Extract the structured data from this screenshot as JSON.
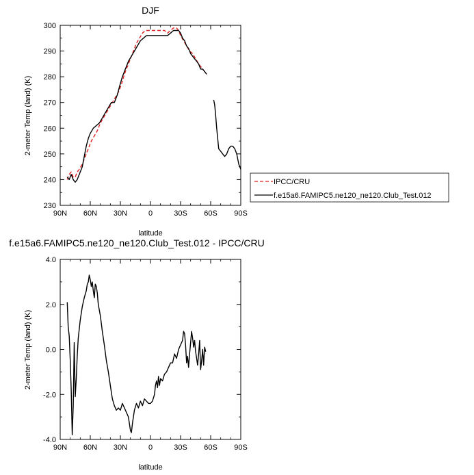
{
  "chart_data": [
    {
      "type": "line",
      "title": "DJF",
      "xlabel": "latitude",
      "ylabel": "2-meter Temp (land) (K)",
      "xlim": [
        90,
        -90
      ],
      "ylim": [
        230,
        300
      ],
      "x_ticks": [
        90,
        60,
        30,
        0,
        -30,
        -60,
        -90
      ],
      "x_tick_labels": [
        "90N",
        "60N",
        "30N",
        "0",
        "30S",
        "60S",
        "90S"
      ],
      "y_ticks": [
        230,
        240,
        250,
        260,
        270,
        280,
        290,
        300
      ],
      "y_tick_labels": [
        "230",
        "240",
        "250",
        "260",
        "270",
        "280",
        "290",
        "300"
      ],
      "legend": {
        "placement": "right",
        "entries": [
          "IPCC/CRU",
          "f.e15a6.FAMIPC5.ne120_ne120.Club_Test.012"
        ]
      },
      "series": [
        {
          "name": "IPCC/CRU",
          "color": "#e02020",
          "dash": true,
          "segments": [
            [
              [
                83,
                240
              ],
              [
                81,
                242
              ],
              [
                79,
                243
              ],
              [
                77,
                241
              ],
              [
                75,
                241
              ],
              [
                73,
                243
              ],
              [
                71,
                244
              ],
              [
                68,
                246
              ],
              [
                65,
                249
              ],
              [
                62,
                252
              ],
              [
                59,
                255
              ],
              [
                56,
                257
              ],
              [
                53,
                259
              ],
              [
                50,
                262
              ],
              [
                47,
                264
              ],
              [
                44,
                266
              ],
              [
                41,
                268
              ],
              [
                38,
                270
              ],
              [
                35,
                272
              ],
              [
                32,
                274
              ],
              [
                29,
                277
              ],
              [
                26,
                281
              ],
              [
                23,
                284
              ],
              [
                20,
                287
              ],
              [
                17,
                290
              ],
              [
                14,
                293
              ],
              [
                11,
                295
              ],
              [
                8,
                297
              ],
              [
                5,
                298
              ],
              [
                2,
                298
              ],
              [
                -2,
                298
              ],
              [
                -6,
                298
              ],
              [
                -10,
                298
              ],
              [
                -14,
                298
              ],
              [
                -17,
                297
              ],
              [
                -20,
                298
              ],
              [
                -23,
                299
              ],
              [
                -26,
                299
              ],
              [
                -28,
                298
              ],
              [
                -30,
                296
              ],
              [
                -33,
                294
              ],
              [
                -36,
                292
              ],
              [
                -39,
                290
              ],
              [
                -42,
                289
              ],
              [
                -45,
                287
              ],
              [
                -48,
                285
              ],
              [
                -50,
                284
              ],
              [
                -52,
                283
              ],
              [
                -54,
                282
              ],
              [
                -56,
                281
              ]
            ]
          ]
        },
        {
          "name": "f.e15a6.FAMIPC5.ne120_ne120.Club_Test.012",
          "color": "#000000",
          "dash": false,
          "segments": [
            [
              [
                83,
                241
              ],
              [
                81,
                240
              ],
              [
                79,
                242
              ],
              [
                77,
                240
              ],
              [
                75,
                239
              ],
              [
                73,
                240
              ],
              [
                71,
                242
              ],
              [
                68,
                245
              ],
              [
                66,
                249
              ],
              [
                64,
                253
              ],
              [
                62,
                256
              ],
              [
                60,
                258
              ],
              [
                57,
                260
              ],
              [
                54,
                261
              ],
              [
                51,
                262
              ],
              [
                48,
                264
              ],
              [
                45,
                266
              ],
              [
                42,
                268
              ],
              [
                39,
                270
              ],
              [
                36,
                270
              ],
              [
                33,
                273
              ],
              [
                31,
                276
              ],
              [
                28,
                280
              ],
              [
                25,
                283
              ],
              [
                22,
                286
              ],
              [
                19,
                288
              ],
              [
                16,
                290
              ],
              [
                13,
                292
              ],
              [
                10,
                294
              ],
              [
                7,
                295
              ],
              [
                4,
                296
              ],
              [
                1,
                296
              ],
              [
                -2,
                296
              ],
              [
                -5,
                296
              ],
              [
                -8,
                296
              ],
              [
                -11,
                296
              ],
              [
                -14,
                296
              ],
              [
                -17,
                296
              ],
              [
                -20,
                297
              ],
              [
                -23,
                298
              ],
              [
                -26,
                298
              ],
              [
                -28,
                298
              ],
              [
                -30,
                297
              ],
              [
                -32,
                295
              ],
              [
                -34,
                294
              ],
              [
                -36,
                292
              ],
              [
                -38,
                291
              ],
              [
                -40,
                289
              ],
              [
                -42,
                288
              ],
              [
                -44,
                287
              ],
              [
                -46,
                286
              ],
              [
                -48,
                285
              ],
              [
                -50,
                283
              ],
              [
                -52,
                283
              ],
              [
                -54,
                282
              ],
              [
                -56,
                281
              ]
            ],
            [
              [
                -63,
                271
              ],
              [
                -64,
                269
              ],
              [
                -65,
                265
              ],
              [
                -66,
                260
              ],
              [
                -67,
                256
              ],
              [
                -68,
                252
              ],
              [
                -70,
                251
              ],
              [
                -72,
                250
              ],
              [
                -74,
                249
              ],
              [
                -76,
                250
              ],
              [
                -78,
                252
              ],
              [
                -80,
                253
              ],
              [
                -82,
                253
              ],
              [
                -84,
                252
              ],
              [
                -86,
                250
              ],
              [
                -88,
                246
              ],
              [
                -90,
                244
              ]
            ]
          ]
        }
      ]
    },
    {
      "type": "line",
      "title": "f.e15a6.FAMIPC5.ne120_ne120.Club_Test.012 - IPCC/CRU",
      "xlabel": "latitude",
      "ylabel": "2-meter Temp (land) (K)",
      "xlim": [
        90,
        -90
      ],
      "ylim": [
        -4.0,
        4.0
      ],
      "x_ticks": [
        90,
        60,
        30,
        0,
        -30,
        -60,
        -90
      ],
      "x_tick_labels": [
        "90N",
        "60N",
        "30N",
        "0",
        "30S",
        "60S",
        "90S"
      ],
      "y_ticks": [
        -4.0,
        -2.0,
        0.0,
        2.0,
        4.0
      ],
      "y_tick_labels": [
        "-4.0",
        "-2.0",
        "0.0",
        "2.0",
        "4.0"
      ],
      "series": [
        {
          "name": "f.e15a6.FAMIPC5.ne120_ne120.Club_Test.012 - IPCC/CRU",
          "color": "#000000",
          "dash": false,
          "segments": [
            [
              [
                83,
                2.1
              ],
              [
                82,
                1.0
              ],
              [
                81,
                0.6
              ],
              [
                80,
                -0.5
              ],
              [
                79,
                -1.8
              ],
              [
                78,
                -3.8
              ],
              [
                77,
                -2.5
              ],
              [
                76,
                0.3
              ],
              [
                75,
                -2.1
              ],
              [
                74,
                -1.3
              ],
              [
                73,
                -0.3
              ],
              [
                72,
                0.5
              ],
              [
                70,
                1.3
              ],
              [
                68,
                1.9
              ],
              [
                66,
                2.3
              ],
              [
                64,
                2.6
              ],
              [
                63,
                2.9
              ],
              [
                62,
                3.0
              ],
              [
                61,
                3.3
              ],
              [
                60,
                3.1
              ],
              [
                59,
                2.8
              ],
              [
                58,
                3.0
              ],
              [
                57,
                2.6
              ],
              [
                56,
                2.3
              ],
              [
                55,
                2.9
              ],
              [
                54,
                2.8
              ],
              [
                53,
                2.5
              ],
              [
                52,
                2.0
              ],
              [
                50,
                1.5
              ],
              [
                48,
                0.8
              ],
              [
                46,
                0.2
              ],
              [
                44,
                -0.5
              ],
              [
                42,
                -1.0
              ],
              [
                40,
                -1.6
              ],
              [
                38,
                -2.2
              ],
              [
                36,
                -2.5
              ],
              [
                34,
                -2.7
              ],
              [
                32,
                -2.6
              ],
              [
                30,
                -2.7
              ],
              [
                28,
                -2.4
              ],
              [
                26,
                -2.6
              ],
              [
                24,
                -2.8
              ],
              [
                22,
                -3.0
              ],
              [
                20,
                -3.6
              ],
              [
                19,
                -3.7
              ],
              [
                18,
                -3.3
              ],
              [
                16,
                -2.7
              ],
              [
                14,
                -2.4
              ],
              [
                12,
                -2.6
              ],
              [
                10,
                -2.3
              ],
              [
                8,
                -2.5
              ],
              [
                6,
                -2.2
              ],
              [
                4,
                -2.3
              ],
              [
                2,
                -2.4
              ],
              [
                0,
                -2.4
              ],
              [
                -2,
                -2.3
              ],
              [
                -4,
                -2.0
              ],
              [
                -5,
                -1.6
              ],
              [
                -6,
                -1.4
              ],
              [
                -7,
                -1.7
              ],
              [
                -8,
                -1.2
              ],
              [
                -9,
                -1.6
              ],
              [
                -10,
                -1.3
              ],
              [
                -12,
                -1.4
              ],
              [
                -14,
                -1.1
              ],
              [
                -16,
                -1.0
              ],
              [
                -18,
                -0.8
              ],
              [
                -20,
                -0.6
              ],
              [
                -22,
                -0.6
              ],
              [
                -24,
                -0.2
              ],
              [
                -26,
                -0.4
              ],
              [
                -28,
                0.0
              ],
              [
                -30,
                0.2
              ],
              [
                -32,
                0.4
              ],
              [
                -33,
                0.8
              ],
              [
                -34,
                0.7
              ],
              [
                -35,
                0.2
              ],
              [
                -36,
                -0.6
              ],
              [
                -37,
                -0.3
              ],
              [
                -38,
                -0.8
              ],
              [
                -39,
                -0.2
              ],
              [
                -40,
                0.3
              ],
              [
                -41,
                0.8
              ],
              [
                -42,
                0.5
              ],
              [
                -43,
                0.1
              ],
              [
                -44,
                0.4
              ],
              [
                -45,
                -0.1
              ],
              [
                -46,
                -0.4
              ],
              [
                -47,
                -0.7
              ],
              [
                -48,
                -0.2
              ],
              [
                -49,
                0.4
              ],
              [
                -50,
                -0.9
              ],
              [
                -51,
                -0.5
              ],
              [
                -52,
                0.0
              ],
              [
                -53,
                -0.7
              ],
              [
                -54,
                0.1
              ],
              [
                -55,
                -0.1
              ]
            ]
          ]
        }
      ]
    }
  ]
}
